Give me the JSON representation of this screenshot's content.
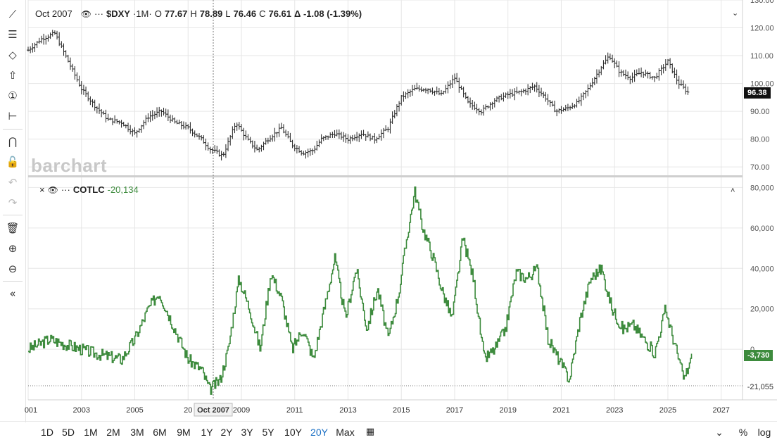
{
  "legend_top": {
    "date": "Oct 2007",
    "symbol": "$DXY",
    "interval": "·1M·",
    "open_label": "O",
    "open": "77.67",
    "high_label": "H",
    "high": "78.89",
    "low_label": "L",
    "low": "76.46",
    "close_label": "C",
    "close": "76.61",
    "change": "Δ -1.08 (-1.39%)",
    "dots": "···"
  },
  "legend_bottom": {
    "close_icon": "×",
    "dots": "···",
    "symbol": "COTLC",
    "value": "-20,134"
  },
  "watermark": "barchart",
  "price_tag": "96.38",
  "cot_tag": "-3,730",
  "cot_min_label": "-21,055",
  "crosshair_label": "Oct 2007",
  "x_ticks": [
    "001",
    "2003",
    "2005",
    "20",
    "2009",
    "2011",
    "2013",
    "2015",
    "2017",
    "2019",
    "2021",
    "2023",
    "2025",
    "2027"
  ],
  "y_ticks_top": [
    "130.00",
    "120.00",
    "110.00",
    "100.00",
    "90.00",
    "80.00",
    "70.00"
  ],
  "y_ticks_bottom": [
    "80,000",
    "60,000",
    "40,000",
    "20,000",
    "0"
  ],
  "timeframes": [
    "1D",
    "5D",
    "1M",
    "2M",
    "3M",
    "6M",
    "9M",
    "1Y",
    "2Y",
    "3Y",
    "5Y",
    "10Y",
    "20Y",
    "Max"
  ],
  "active_timeframe": "20Y",
  "bottom_right": {
    "percent": "%",
    "log": "log"
  },
  "colors": {
    "cot_line": "#3d8b3d",
    "price_bar": "#222222",
    "active": "#1a6fc4"
  },
  "chart_data": [
    {
      "type": "ohlc",
      "title": "$DXY",
      "x_range": [
        2001.0,
        2027.8
      ],
      "ylim": [
        67,
        130
      ],
      "grid": true,
      "x": [
        2001.0,
        2001.5,
        2002.0,
        2002.5,
        2003.0,
        2003.5,
        2004.0,
        2004.5,
        2005.0,
        2005.5,
        2006.0,
        2006.5,
        2007.0,
        2007.5,
        2007.8,
        2008.3,
        2008.8,
        2009.2,
        2009.6,
        2010.0,
        2010.5,
        2010.9,
        2011.3,
        2011.7,
        2012.0,
        2012.5,
        2013.0,
        2013.5,
        2014.0,
        2014.5,
        2015.0,
        2015.5,
        2016.0,
        2016.5,
        2017.0,
        2017.5,
        2018.0,
        2018.5,
        2019.0,
        2019.5,
        2020.0,
        2020.4,
        2020.8,
        2021.2,
        2021.6,
        2022.0,
        2022.5,
        2022.8,
        2023.2,
        2023.6,
        2024.0,
        2024.5,
        2025.0,
        2025.4,
        2025.8
      ],
      "close": [
        112,
        116,
        118,
        108,
        98,
        92,
        87,
        86,
        82,
        88,
        90,
        86,
        84,
        80,
        76.6,
        74,
        86,
        80,
        76,
        80,
        84,
        78,
        75,
        76,
        80,
        82,
        80,
        82,
        80,
        84,
        95,
        98,
        98,
        96,
        102,
        93,
        90,
        94,
        96,
        97,
        99,
        95,
        90,
        91,
        93,
        98,
        106,
        110,
        104,
        102,
        104,
        102,
        108,
        100,
        96.4
      ]
    },
    {
      "type": "line",
      "title": "COTLC",
      "x_range": [
        2001.0,
        2027.8
      ],
      "ylim": [
        -25000,
        85000
      ],
      "grid": true,
      "x": [
        2001.0,
        2001.8,
        2002.5,
        2003.5,
        2004.5,
        2005.0,
        2005.5,
        2005.9,
        2006.5,
        2007.0,
        2007.5,
        2007.8,
        2008.2,
        2008.5,
        2008.9,
        2009.3,
        2009.7,
        2010.1,
        2010.5,
        2010.9,
        2011.3,
        2011.7,
        2012.1,
        2012.5,
        2012.9,
        2013.3,
        2013.7,
        2014.1,
        2014.5,
        2014.9,
        2015.2,
        2015.5,
        2015.8,
        2016.2,
        2016.5,
        2016.9,
        2017.3,
        2017.7,
        2018.1,
        2018.5,
        2018.9,
        2019.3,
        2019.7,
        2020.1,
        2020.5,
        2020.9,
        2021.3,
        2021.7,
        2022.1,
        2022.5,
        2022.9,
        2023.3,
        2023.7,
        2024.1,
        2024.5,
        2024.9,
        2025.3,
        2025.6,
        2025.9
      ],
      "y": [
        0,
        5000,
        2000,
        -2000,
        -5000,
        5000,
        20000,
        28000,
        10000,
        -5000,
        -10000,
        -20000,
        -15000,
        0,
        35000,
        20000,
        0,
        38000,
        25000,
        0,
        10000,
        -5000,
        20000,
        45000,
        15000,
        40000,
        10000,
        30000,
        5000,
        28000,
        55000,
        78000,
        60000,
        45000,
        30000,
        15000,
        55000,
        35000,
        -5000,
        0,
        10000,
        38000,
        35000,
        40000,
        5000,
        -5000,
        -15000,
        15000,
        35000,
        40000,
        20000,
        10000,
        12000,
        5000,
        -2000,
        20000,
        0,
        -15000,
        -3730
      ]
    }
  ]
}
